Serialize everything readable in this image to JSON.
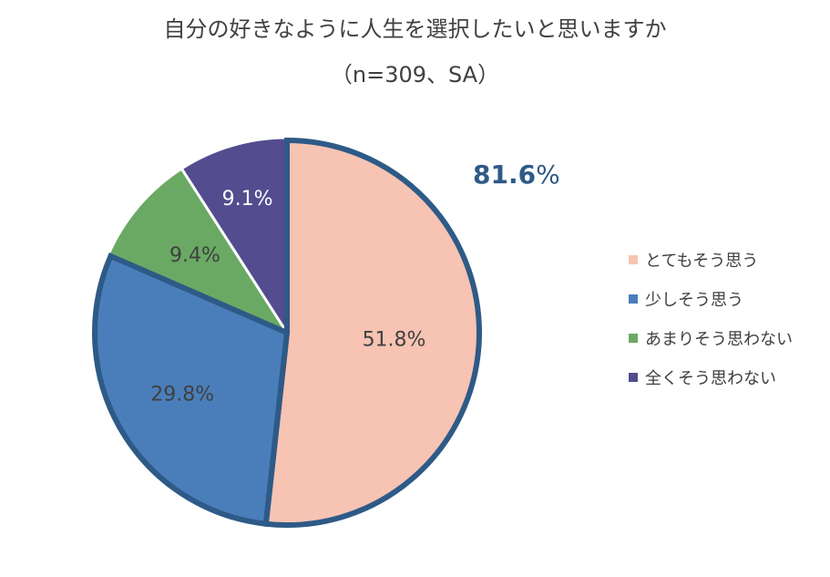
{
  "chart_data": {
    "type": "pie",
    "title": "自分の好きなように人生を選択したいと思いますか",
    "subtitle": "（n=309、SA）",
    "categories": [
      "とてもそう思う",
      "少しそう思う",
      "あまりそう思わない",
      "全くそう思わない"
    ],
    "values": [
      51.8,
      29.8,
      9.4,
      9.1
    ],
    "labels": [
      "51.8%",
      "29.8%",
      "9.4%",
      "9.1%"
    ],
    "colors": [
      "#F7C3B3",
      "#4A7EBB",
      "#6AA964",
      "#534C8F"
    ],
    "highlight": {
      "slices": [
        "とてもそう思う",
        "少しそう思う"
      ],
      "outline_color": "#2E5A87",
      "combined_label_value": "81.6",
      "combined_label_unit": "%"
    },
    "legend_position": "right"
  }
}
